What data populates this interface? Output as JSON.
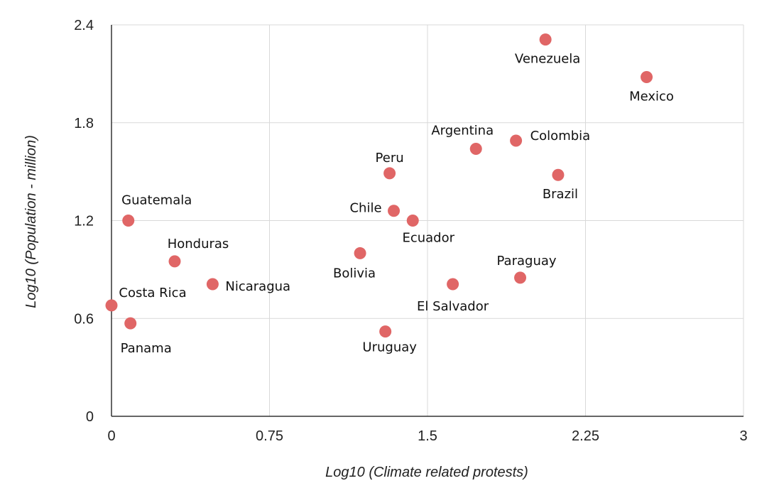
{
  "chart_data": {
    "type": "scatter",
    "title": "",
    "xlabel": "Log10 (Climate related protests)",
    "ylabel": "Log10 (Population - million)",
    "xlim": [
      0,
      3
    ],
    "ylim": [
      0,
      2.4
    ],
    "x_ticks": [
      "0",
      "0.75",
      "1.5",
      "2.25",
      "3"
    ],
    "y_ticks": [
      "0",
      "0.6",
      "1.2",
      "1.8",
      "2.4"
    ],
    "grid": true,
    "legend": "none",
    "point_color": "#e06666",
    "points": [
      {
        "label": "Venezuela",
        "x": 2.06,
        "y": 2.31
      },
      {
        "label": "Mexico",
        "x": 2.54,
        "y": 2.08
      },
      {
        "label": "Argentina",
        "x": 1.73,
        "y": 1.64
      },
      {
        "label": "Colombia",
        "x": 1.92,
        "y": 1.69
      },
      {
        "label": "Brazil",
        "x": 2.12,
        "y": 1.48
      },
      {
        "label": "Peru",
        "x": 1.32,
        "y": 1.49
      },
      {
        "label": "Chile",
        "x": 1.34,
        "y": 1.26
      },
      {
        "label": "Ecuador",
        "x": 1.43,
        "y": 1.2
      },
      {
        "label": "Guatemala",
        "x": 0.08,
        "y": 1.2
      },
      {
        "label": "Honduras",
        "x": 0.3,
        "y": 0.95
      },
      {
        "label": "Bolivia",
        "x": 1.18,
        "y": 1.0
      },
      {
        "label": "Paraguay",
        "x": 1.94,
        "y": 0.85
      },
      {
        "label": "Nicaragua",
        "x": 0.48,
        "y": 0.81
      },
      {
        "label": "El Salvador",
        "x": 1.62,
        "y": 0.81
      },
      {
        "label": "Costa Rica",
        "x": 0.0,
        "y": 0.68
      },
      {
        "label": "Panama",
        "x": 0.09,
        "y": 0.57
      },
      {
        "label": "Uruguay",
        "x": 1.3,
        "y": 0.52
      }
    ]
  }
}
